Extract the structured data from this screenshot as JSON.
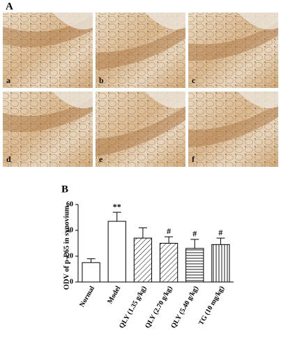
{
  "panel_a_label": "A",
  "panel_b_label": "B",
  "image_labels": [
    "a",
    "b",
    "c",
    "d",
    "e",
    "f"
  ],
  "chart_data": {
    "type": "bar",
    "y_label": "ODV of p-P65 in synovium",
    "categories": [
      "Normal",
      "Model",
      "QLY (1.35 g/kg)",
      "QLY (2.70 g/kg)",
      "QLY (5.40 g/kg)",
      "TG (10 mg/kg)"
    ],
    "values": [
      15,
      47,
      34,
      30,
      26,
      29
    ],
    "errors": [
      3,
      7,
      8,
      5,
      7,
      5
    ],
    "significance": [
      null,
      "**",
      null,
      "#",
      "#",
      "#"
    ],
    "hatches": [
      "none",
      "none",
      "diagonal",
      "diagonal",
      "horizontal",
      "vertical"
    ],
    "color": "#000000",
    "ylim": [
      0,
      60
    ],
    "yticks": [
      0,
      20,
      40,
      60
    ]
  }
}
